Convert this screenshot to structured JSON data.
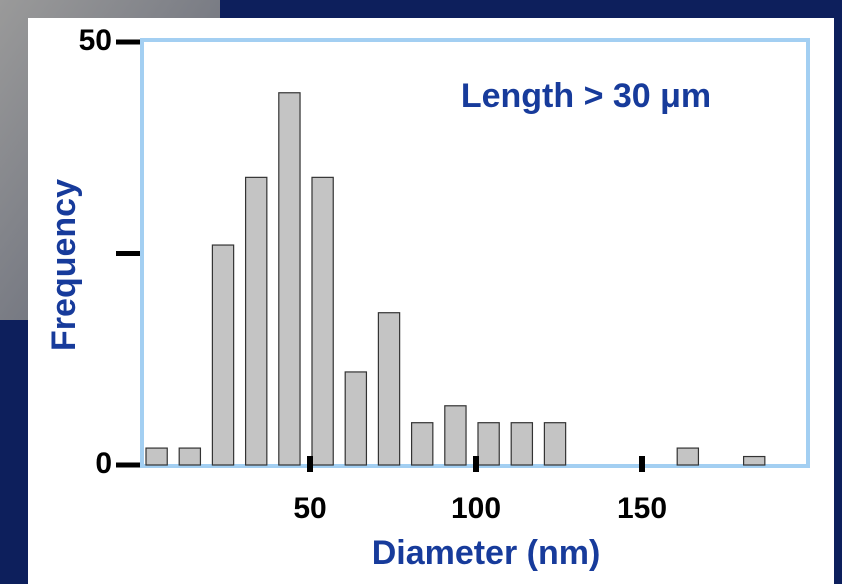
{
  "chart_data": {
    "type": "histogram",
    "annotation": "Length  > 30 μm",
    "xlabel": "Diameter (nm)",
    "ylabel": "Frequency",
    "bins": [
      0,
      10,
      20,
      30,
      40,
      50,
      60,
      70,
      80,
      90,
      100,
      110,
      120,
      130,
      140,
      150,
      160,
      170,
      180,
      190,
      200
    ],
    "values": [
      2,
      2,
      26,
      34,
      44,
      34,
      11,
      18,
      5,
      7,
      5,
      5,
      5,
      0,
      0,
      0,
      2,
      0,
      1,
      0
    ],
    "color": "#c4c4c4",
    "xlim": [
      0,
      200
    ],
    "xticks": [
      50,
      100,
      150
    ],
    "ylim": [
      0,
      50
    ],
    "yticks": [
      0,
      {
        "value": 25,
        "label": null
      },
      50
    ]
  }
}
